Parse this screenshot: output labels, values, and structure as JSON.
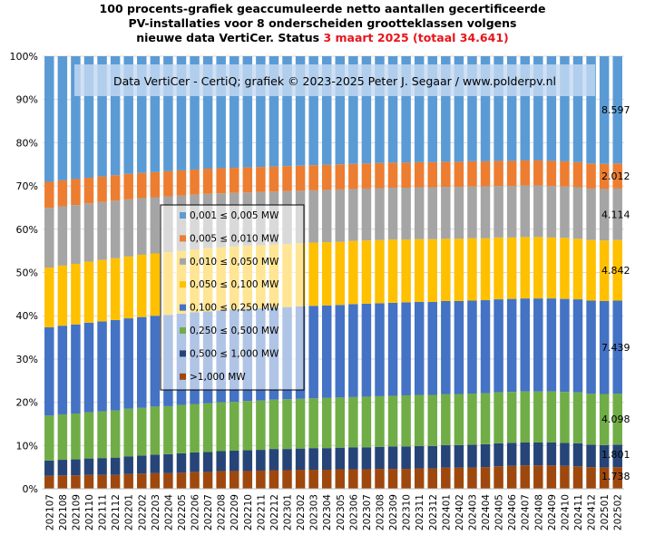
{
  "chart_data": {
    "type": "bar",
    "stacked": "percent",
    "title": {
      "line1": "100 procents-grafiek geaccumuleerde netto aantallen gecertificeerde",
      "line2": "PV-installaties voor 8 onderscheiden grootteklassen volgens",
      "line3_prefix": "nieuwe data VertiCer. Status ",
      "line3_date": "3 maart 2025",
      "line3_total": "(totaal 34.641)"
    },
    "watermark": "Data VertiCer - CertiQ; grafiek © 2023-2025 Peter J. Segaar / www.polderpv.nl",
    "ylim": [
      0,
      100
    ],
    "y_ticks": [
      "0%",
      "10%",
      "20%",
      "30%",
      "40%",
      "50%",
      "60%",
      "70%",
      "80%",
      "90%",
      "100%"
    ],
    "grid": true,
    "legend_position": "left-middle",
    "categories": [
      "202107",
      "202108",
      "202109",
      "202110",
      "202111",
      "202112",
      "202201",
      "202202",
      "202203",
      "202204",
      "202205",
      "202206",
      "202207",
      "202208",
      "202209",
      "202210",
      "202211",
      "202212",
      "202301",
      "202302",
      "202303",
      "202304",
      "202305",
      "202306",
      "202307",
      "202308",
      "202309",
      "202310",
      "202311",
      "202312",
      "202401",
      "202402",
      "202403",
      "202404",
      "202405",
      "202406",
      "202407",
      "202408",
      "202409",
      "202410",
      "202411",
      "202412",
      "202501",
      "202502"
    ],
    "series": [
      {
        "name": "0,001 ≤  0,005 MW",
        "color": "#5b9bd5",
        "start": 29.0,
        "end": 24.8,
        "pattern": [
          0,
          0,
          0,
          0,
          0,
          0,
          0,
          0,
          0,
          0,
          0,
          0,
          0,
          0,
          0,
          0,
          0,
          0,
          0,
          0,
          0,
          0,
          0,
          0,
          0,
          0,
          0,
          0,
          0,
          0,
          0,
          0,
          0,
          0,
          0,
          0,
          0,
          0,
          0,
          0,
          0,
          0,
          0,
          0
        ],
        "values": [
          29.0,
          28.7,
          28.4,
          28.1,
          27.8,
          27.5,
          27.2,
          27.0,
          26.8,
          26.6,
          26.4,
          26.2,
          26.0,
          25.9,
          25.8,
          25.7,
          25.6,
          25.5,
          25.4,
          25.3,
          25.2,
          25.1,
          25.0,
          24.9,
          24.8,
          24.7,
          24.6,
          24.6,
          24.5,
          24.5,
          24.4,
          24.4,
          24.3,
          24.3,
          24.2,
          24.2,
          24.1,
          24.1,
          24.2,
          24.3,
          24.5,
          24.8,
          24.9,
          24.8
        ]
      },
      {
        "name": "0,005 ≤  0,010 MW",
        "color": "#ed7d31",
        "values": [
          6.0,
          6.0,
          6.0,
          5.9,
          5.9,
          5.9,
          5.9,
          5.8,
          5.8,
          5.8,
          5.8,
          5.8,
          5.8,
          5.8,
          5.8,
          5.8,
          5.8,
          5.8,
          5.8,
          5.8,
          5.8,
          5.8,
          5.8,
          5.8,
          5.8,
          5.8,
          5.8,
          5.8,
          5.8,
          5.8,
          5.8,
          5.8,
          5.8,
          5.8,
          5.8,
          5.8,
          5.8,
          5.8,
          5.8,
          5.8,
          5.8,
          5.8,
          5.8,
          5.8
        ]
      },
      {
        "name": "0,010 ≤  0,050 MW",
        "color": "#a5a5a5",
        "values": [
          13.8,
          13.7,
          13.6,
          13.5,
          13.4,
          13.3,
          13.2,
          13.1,
          13.0,
          12.9,
          12.8,
          12.7,
          12.6,
          12.5,
          12.4,
          12.3,
          12.3,
          12.2,
          12.2,
          12.1,
          12.1,
          12.1,
          12.1,
          12.0,
          12.0,
          12.0,
          12.0,
          12.0,
          12.0,
          12.0,
          12.0,
          12.0,
          12.0,
          12.0,
          11.9,
          11.9,
          11.9,
          11.9,
          11.9,
          11.9,
          11.9,
          11.9,
          11.9,
          11.9
        ]
      },
      {
        "name": "0,050 ≤  0,100 MW",
        "color": "#ffc000",
        "values": [
          13.8,
          13.9,
          14.0,
          14.1,
          14.2,
          14.3,
          14.3,
          14.4,
          14.4,
          14.5,
          14.5,
          14.5,
          14.6,
          14.6,
          14.6,
          14.6,
          14.6,
          14.6,
          14.6,
          14.6,
          14.6,
          14.6,
          14.6,
          14.6,
          14.6,
          14.6,
          14.6,
          14.5,
          14.5,
          14.5,
          14.4,
          14.4,
          14.4,
          14.3,
          14.3,
          14.2,
          14.2,
          14.2,
          14.1,
          14.1,
          14.0,
          14.0,
          14.0,
          14.0
        ]
      },
      {
        "name": "0,100 ≤  0,250 MW",
        "color": "#4472c4",
        "values": [
          20.4,
          20.5,
          20.6,
          20.7,
          20.8,
          20.9,
          20.9,
          21.0,
          21.0,
          21.1,
          21.1,
          21.2,
          21.2,
          21.2,
          21.3,
          21.3,
          21.3,
          21.3,
          21.3,
          21.4,
          21.4,
          21.4,
          21.4,
          21.5,
          21.5,
          21.5,
          21.5,
          21.5,
          21.5,
          21.5,
          21.5,
          21.5,
          21.5,
          21.5,
          21.5,
          21.5,
          21.5,
          21.5,
          21.5,
          21.5,
          21.5,
          21.5,
          21.5,
          21.5
        ]
      },
      {
        "name": "0,250 ≤  0,500 MW",
        "color": "#70ad47",
        "values": [
          10.4,
          10.5,
          10.6,
          10.7,
          10.8,
          10.9,
          11.0,
          11.0,
          11.1,
          11.1,
          11.2,
          11.2,
          11.3,
          11.3,
          11.3,
          11.4,
          11.4,
          11.4,
          11.5,
          11.5,
          11.5,
          11.6,
          11.6,
          11.6,
          11.7,
          11.7,
          11.7,
          11.8,
          11.8,
          11.8,
          11.8,
          11.8,
          11.8,
          11.8,
          11.8,
          11.8,
          11.8,
          11.8,
          11.8,
          11.8,
          11.8,
          11.8,
          11.8,
          11.8
        ]
      },
      {
        "name": "0,500 ≤  1,000 MW",
        "color": "#264478",
        "values": [
          3.5,
          3.6,
          3.7,
          3.8,
          3.9,
          4.0,
          4.1,
          4.2,
          4.3,
          4.4,
          4.5,
          4.5,
          4.6,
          4.6,
          4.7,
          4.8,
          4.8,
          4.9,
          4.9,
          4.9,
          5.0,
          5.0,
          5.0,
          5.1,
          5.1,
          5.1,
          5.2,
          5.2,
          5.2,
          5.2,
          5.2,
          5.2,
          5.3,
          5.3,
          5.3,
          5.3,
          5.3,
          5.3,
          5.3,
          5.3,
          5.3,
          5.2,
          5.2,
          5.2
        ]
      },
      {
        "name": ">1,000 MW",
        "color": "#9e480e",
        "values": [
          3.0,
          3.1,
          3.1,
          3.2,
          3.2,
          3.2,
          3.4,
          3.5,
          3.6,
          3.6,
          3.7,
          3.9,
          3.9,
          4.1,
          4.1,
          4.1,
          4.2,
          4.3,
          4.3,
          4.4,
          4.4,
          4.4,
          4.5,
          4.5,
          4.5,
          4.6,
          4.6,
          4.6,
          4.7,
          4.7,
          4.9,
          4.9,
          4.9,
          5.0,
          5.2,
          5.3,
          5.4,
          5.4,
          5.4,
          5.3,
          5.2,
          5.0,
          4.9,
          5.0
        ]
      }
    ],
    "data_labels": [
      {
        "series": 0,
        "text": "8.597"
      },
      {
        "series": 1,
        "text": "2.012"
      },
      {
        "series": 2,
        "text": "4.114"
      },
      {
        "series": 3,
        "text": "4.842"
      },
      {
        "series": 4,
        "text": "7.439"
      },
      {
        "series": 5,
        "text": "4.098"
      },
      {
        "series": 6,
        "text": "1.801"
      },
      {
        "series": 7,
        "text": "1.738"
      }
    ]
  }
}
